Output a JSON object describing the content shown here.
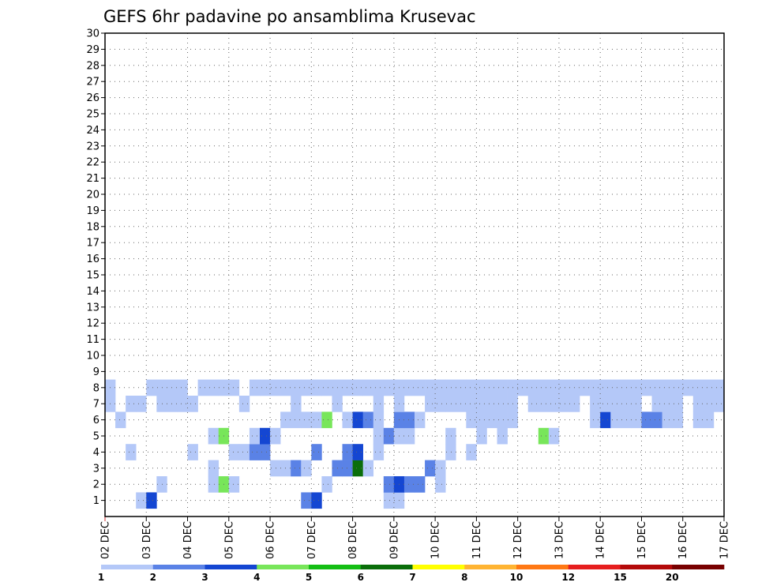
{
  "chart_data": {
    "type": "heatmap",
    "title": "GEFS 6hr padavine po ansamblima Krusevac",
    "xlabel": "",
    "ylabel": "",
    "x_tick_labels": [
      "02 DEC",
      "03 DEC",
      "04 DEC",
      "05 DEC",
      "06 DEC",
      "07 DEC",
      "08 DEC",
      "09 DEC",
      "10 DEC",
      "11 DEC",
      "12 DEC",
      "13 DEC",
      "14 DEC",
      "15 DEC",
      "16 DEC",
      "17 DEC"
    ],
    "y_tick_labels": [
      "1",
      "2",
      "3",
      "4",
      "5",
      "6",
      "7",
      "8",
      "9",
      "10",
      "11",
      "12",
      "13",
      "14",
      "15",
      "16",
      "17",
      "18",
      "19",
      "20",
      "21",
      "22",
      "23",
      "24",
      "25",
      "26",
      "27",
      "28",
      "29",
      "30"
    ],
    "xlim": [
      0,
      60
    ],
    "ylim": [
      0,
      30
    ],
    "grid": true,
    "color_scale": {
      "colors": [
        "#b4c8f8",
        "#5a82e6",
        "#1446d2",
        "#78e65a",
        "#14be14",
        "#0a6e0a",
        "#ffff00",
        "#ffb432",
        "#ff7814",
        "#e61e1e",
        "#b40a0a",
        "#780000"
      ],
      "labels": [
        "1",
        "2",
        "3",
        "4",
        "5",
        "6",
        "7",
        "8",
        "10",
        "12",
        "15",
        "20"
      ]
    },
    "cells": [
      [
        3,
        1,
        1
      ],
      [
        4,
        1,
        3
      ],
      [
        19,
        1,
        2
      ],
      [
        20,
        1,
        3
      ],
      [
        27,
        1,
        1
      ],
      [
        28,
        1,
        1
      ],
      [
        5,
        2,
        1
      ],
      [
        10,
        2,
        1
      ],
      [
        11,
        2,
        4
      ],
      [
        12,
        2,
        1
      ],
      [
        21,
        2,
        1
      ],
      [
        27,
        2,
        2
      ],
      [
        28,
        2,
        3
      ],
      [
        29,
        2,
        2
      ],
      [
        30,
        2,
        2
      ],
      [
        32,
        2,
        1
      ],
      [
        10,
        3,
        1
      ],
      [
        16,
        3,
        1
      ],
      [
        17,
        3,
        1
      ],
      [
        18,
        3,
        2
      ],
      [
        19,
        3,
        1
      ],
      [
        22,
        3,
        2
      ],
      [
        23,
        3,
        2
      ],
      [
        24,
        3,
        6
      ],
      [
        25,
        3,
        1
      ],
      [
        31,
        3,
        2
      ],
      [
        32,
        3,
        1
      ],
      [
        2,
        4,
        1
      ],
      [
        8,
        4,
        1
      ],
      [
        12,
        4,
        1
      ],
      [
        13,
        4,
        1
      ],
      [
        14,
        4,
        2
      ],
      [
        15,
        4,
        2
      ],
      [
        20,
        4,
        2
      ],
      [
        23,
        4,
        2
      ],
      [
        24,
        4,
        3
      ],
      [
        26,
        4,
        1
      ],
      [
        33,
        4,
        1
      ],
      [
        35,
        4,
        1
      ],
      [
        10,
        5,
        1
      ],
      [
        11,
        5,
        4
      ],
      [
        14,
        5,
        1
      ],
      [
        15,
        5,
        3
      ],
      [
        16,
        5,
        1
      ],
      [
        26,
        5,
        1
      ],
      [
        27,
        5,
        2
      ],
      [
        28,
        5,
        1
      ],
      [
        29,
        5,
        1
      ],
      [
        33,
        5,
        1
      ],
      [
        36,
        5,
        1
      ],
      [
        38,
        5,
        1
      ],
      [
        42,
        5,
        4
      ],
      [
        43,
        5,
        1
      ],
      [
        1,
        6,
        1
      ],
      [
        17,
        6,
        1
      ],
      [
        18,
        6,
        1
      ],
      [
        19,
        6,
        1
      ],
      [
        20,
        6,
        1
      ],
      [
        21,
        6,
        4
      ],
      [
        23,
        6,
        1
      ],
      [
        24,
        6,
        3
      ],
      [
        25,
        6,
        2
      ],
      [
        26,
        6,
        1
      ],
      [
        28,
        6,
        2
      ],
      [
        29,
        6,
        2
      ],
      [
        30,
        6,
        1
      ],
      [
        35,
        6,
        1
      ],
      [
        36,
        6,
        1
      ],
      [
        37,
        6,
        1
      ],
      [
        38,
        6,
        1
      ],
      [
        39,
        6,
        1
      ],
      [
        47,
        6,
        1
      ],
      [
        48,
        6,
        3
      ],
      [
        49,
        6,
        1
      ],
      [
        50,
        6,
        1
      ],
      [
        51,
        6,
        1
      ],
      [
        52,
        6,
        2
      ],
      [
        53,
        6,
        2
      ],
      [
        54,
        6,
        1
      ],
      [
        55,
        6,
        1
      ],
      [
        57,
        6,
        1
      ],
      [
        58,
        6,
        1
      ],
      [
        0,
        7,
        1
      ],
      [
        2,
        7,
        1
      ],
      [
        3,
        7,
        1
      ],
      [
        5,
        7,
        1
      ],
      [
        6,
        7,
        1
      ],
      [
        7,
        7,
        1
      ],
      [
        8,
        7,
        1
      ],
      [
        13,
        7,
        1
      ],
      [
        18,
        7,
        1
      ],
      [
        22,
        7,
        1
      ],
      [
        26,
        7,
        1
      ],
      [
        28,
        7,
        1
      ],
      [
        31,
        7,
        1
      ],
      [
        32,
        7,
        1
      ],
      [
        33,
        7,
        1
      ],
      [
        34,
        7,
        1
      ],
      [
        35,
        7,
        1
      ],
      [
        36,
        7,
        1
      ],
      [
        37,
        7,
        1
      ],
      [
        38,
        7,
        1
      ],
      [
        39,
        7,
        1
      ],
      [
        41,
        7,
        1
      ],
      [
        42,
        7,
        1
      ],
      [
        43,
        7,
        1
      ],
      [
        44,
        7,
        1
      ],
      [
        45,
        7,
        1
      ],
      [
        47,
        7,
        1
      ],
      [
        48,
        7,
        1
      ],
      [
        49,
        7,
        1
      ],
      [
        50,
        7,
        1
      ],
      [
        51,
        7,
        1
      ],
      [
        53,
        7,
        1
      ],
      [
        54,
        7,
        1
      ],
      [
        55,
        7,
        1
      ],
      [
        57,
        7,
        1
      ],
      [
        58,
        7,
        1
      ],
      [
        59,
        7,
        1
      ],
      [
        0,
        8,
        1
      ],
      [
        4,
        8,
        1
      ],
      [
        5,
        8,
        1
      ],
      [
        6,
        8,
        1
      ],
      [
        7,
        8,
        1
      ],
      [
        9,
        8,
        1
      ],
      [
        10,
        8,
        1
      ],
      [
        11,
        8,
        1
      ],
      [
        12,
        8,
        1
      ],
      [
        14,
        8,
        1
      ],
      [
        15,
        8,
        1
      ],
      [
        16,
        8,
        1
      ],
      [
        17,
        8,
        1
      ],
      [
        18,
        8,
        1
      ],
      [
        19,
        8,
        1
      ],
      [
        20,
        8,
        1
      ],
      [
        21,
        8,
        1
      ],
      [
        22,
        8,
        1
      ],
      [
        23,
        8,
        1
      ],
      [
        24,
        8,
        1
      ],
      [
        25,
        8,
        1
      ],
      [
        26,
        8,
        1
      ],
      [
        27,
        8,
        1
      ],
      [
        28,
        8,
        1
      ],
      [
        29,
        8,
        1
      ],
      [
        30,
        8,
        1
      ],
      [
        31,
        8,
        1
      ],
      [
        32,
        8,
        1
      ],
      [
        33,
        8,
        1
      ],
      [
        34,
        8,
        1
      ],
      [
        35,
        8,
        1
      ],
      [
        36,
        8,
        1
      ],
      [
        37,
        8,
        1
      ],
      [
        38,
        8,
        1
      ],
      [
        39,
        8,
        1
      ],
      [
        40,
        8,
        1
      ],
      [
        41,
        8,
        1
      ],
      [
        42,
        8,
        1
      ],
      [
        43,
        8,
        1
      ],
      [
        44,
        8,
        1
      ],
      [
        45,
        8,
        1
      ],
      [
        46,
        8,
        1
      ],
      [
        47,
        8,
        1
      ],
      [
        48,
        8,
        1
      ],
      [
        49,
        8,
        1
      ],
      [
        50,
        8,
        1
      ],
      [
        51,
        8,
        1
      ],
      [
        52,
        8,
        1
      ],
      [
        53,
        8,
        1
      ],
      [
        54,
        8,
        1
      ],
      [
        55,
        8,
        1
      ],
      [
        56,
        8,
        1
      ],
      [
        57,
        8,
        1
      ],
      [
        58,
        8,
        1
      ],
      [
        59,
        8,
        1
      ]
    ]
  }
}
